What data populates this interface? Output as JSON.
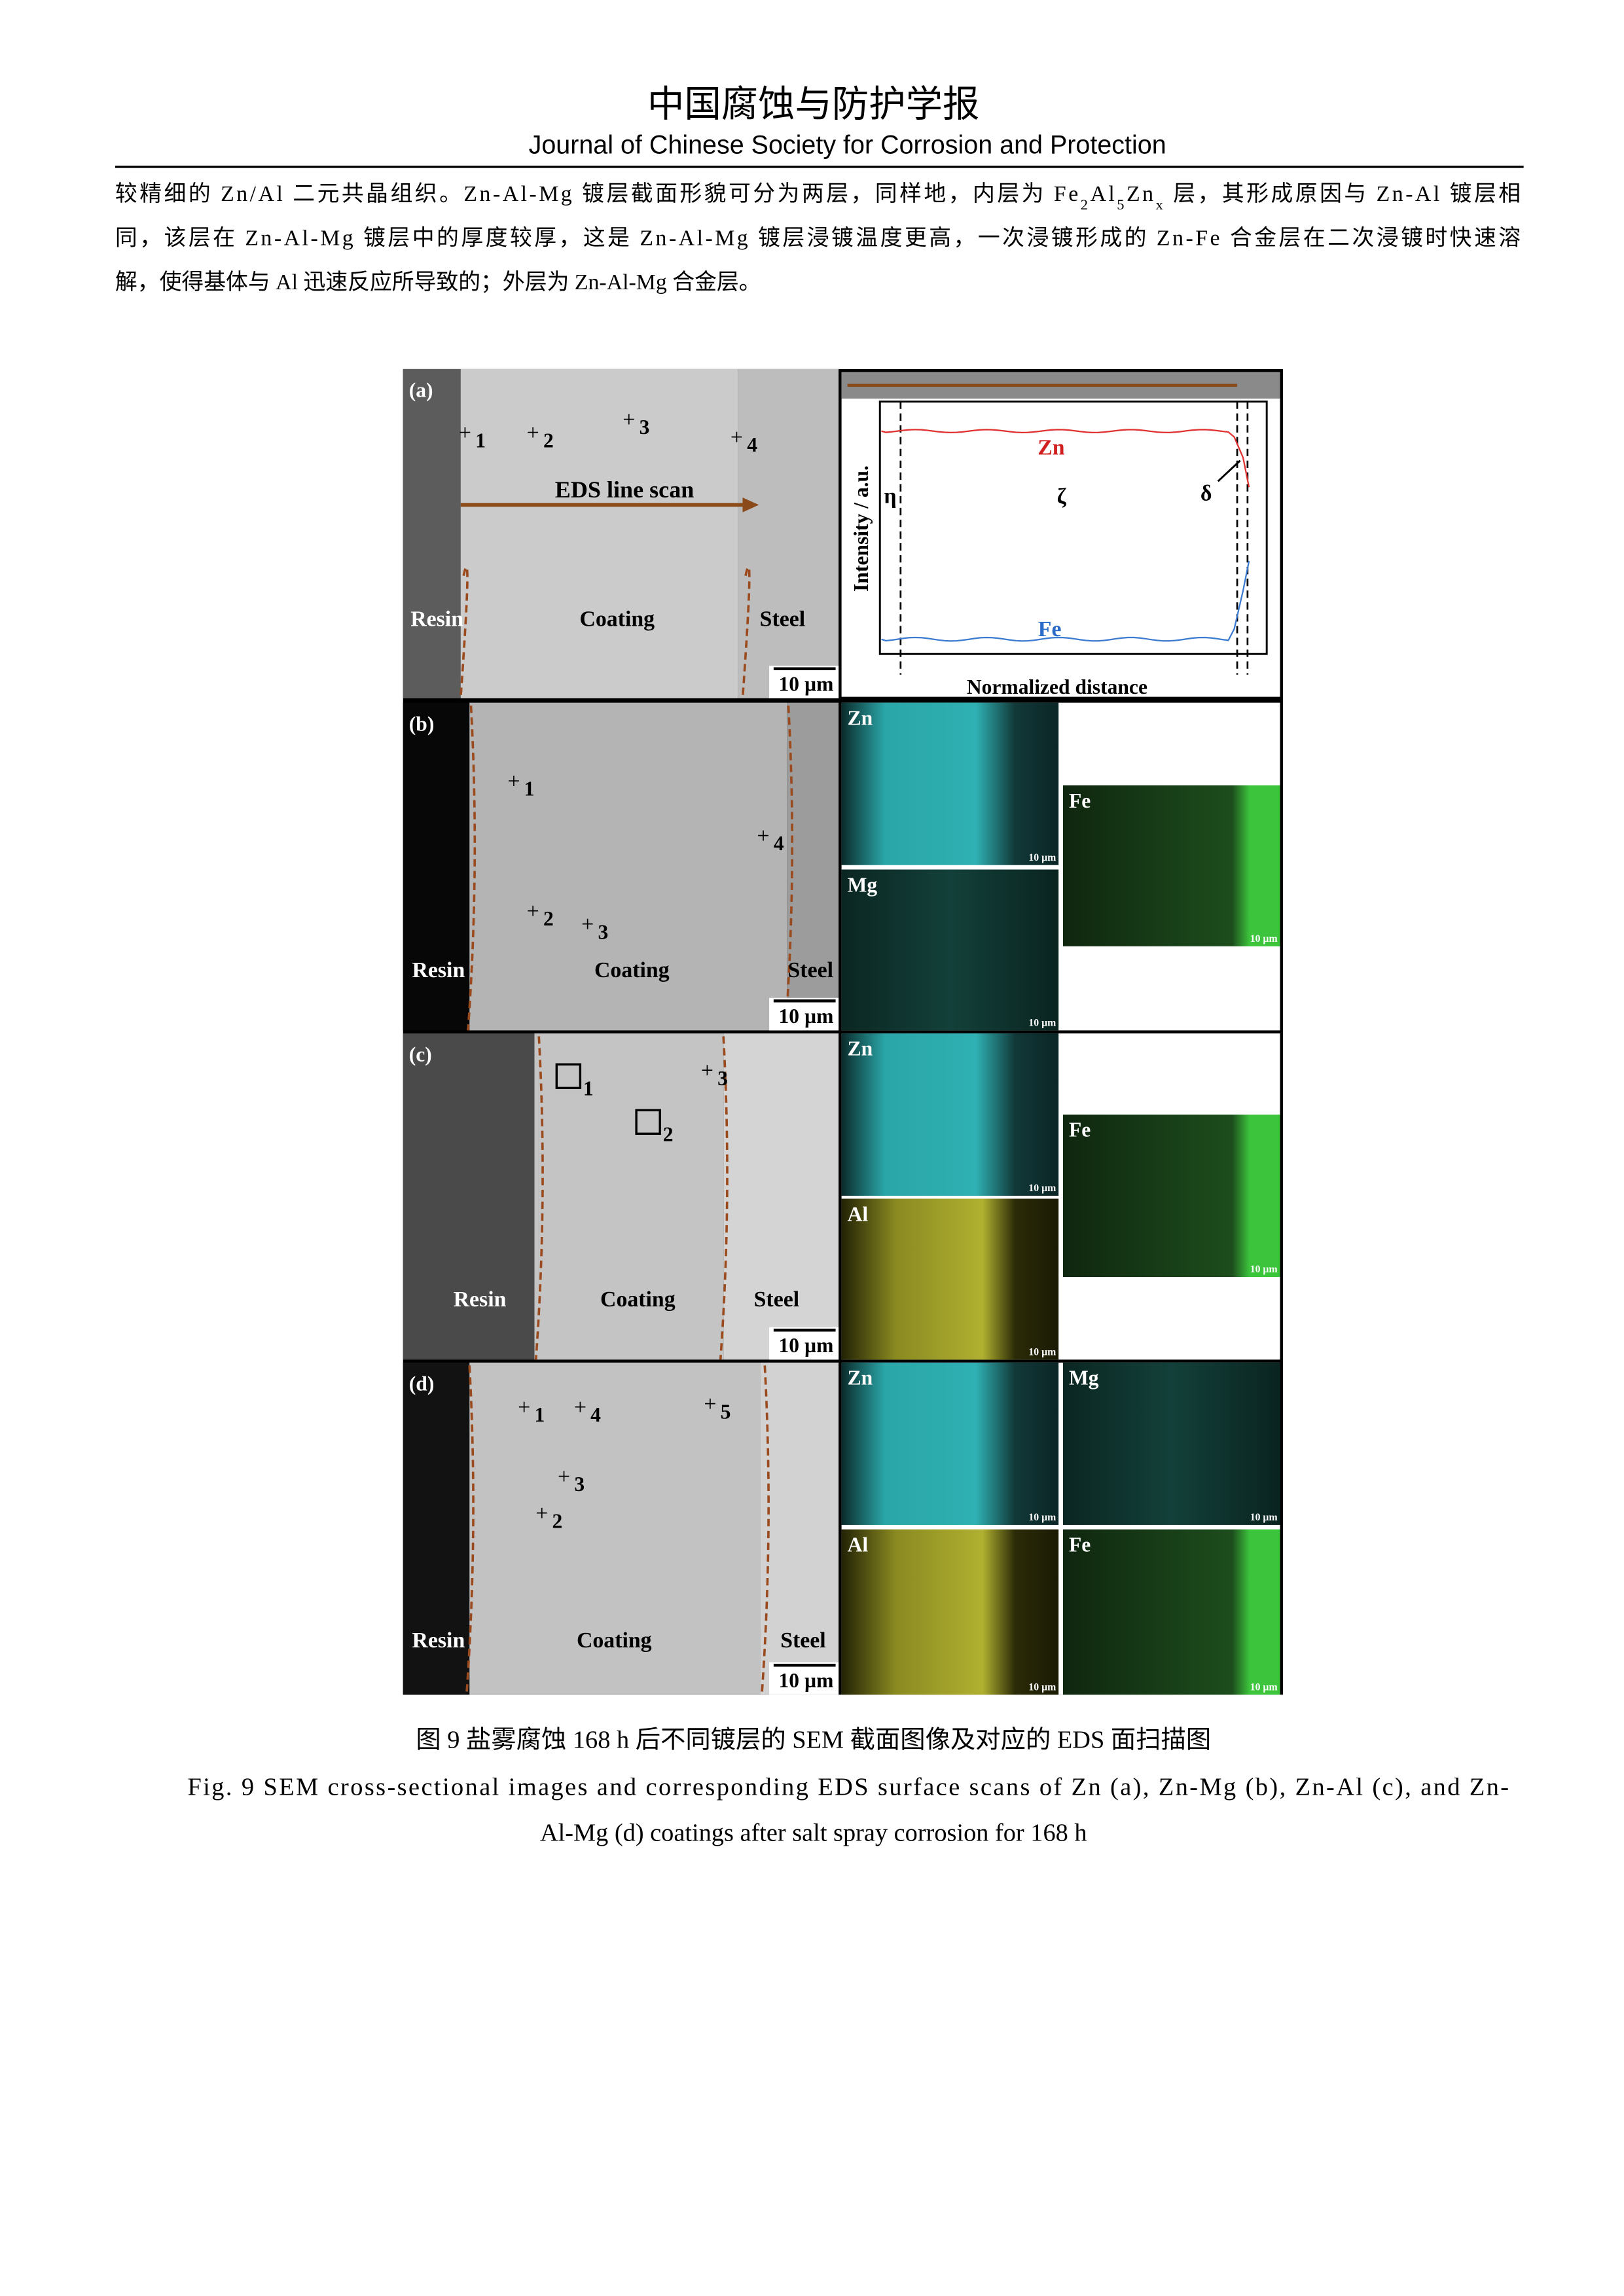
{
  "header": {
    "title": "中国腐蚀与防护学报",
    "subtitle": "Journal of Chinese Society for Corrosion and Protection"
  },
  "body": {
    "lines": [
      {
        "parts": [
          "较精细的 Zn/Al 二元共晶组织。Zn-Al-Mg 镀层截面形貌可分为两层，同样地，内层为 Fe",
          "2",
          "Al",
          "5",
          "Zn",
          "x",
          " 层，其形成原因与 Zn-Al 镀层相"
        ]
      },
      {
        "parts": [
          "同，该层在 Zn-Al-Mg 镀层中的厚度较厚，这是 Zn-Al-Mg 镀层浸镀温度更高，一次浸镀形成的 Zn-Fe 合金层在二次浸镀时快速溶"
        ]
      },
      {
        "parts": [
          "解，使得基体与 Al 迅速反应所导致的；外层为 Zn-Al-Mg 合金层。"
        ]
      }
    ]
  },
  "figure": {
    "panels": [
      {
        "label": "(a)",
        "points": [
          "1",
          "2",
          "3",
          "4"
        ],
        "regions": [
          "Resin",
          "Coating",
          "Steel"
        ],
        "scale_bar": "10 µm",
        "line_scan": "EDS line scan",
        "profile": {
          "y_label": "Intensity / a.u.",
          "x_label": "Normalized distance",
          "curves": [
            "Zn",
            "Fe"
          ],
          "zones": [
            "η",
            "ζ",
            "δ"
          ]
        }
      },
      {
        "label": "(b)",
        "points": [
          "1",
          "4",
          "2",
          "3"
        ],
        "regions": [
          "Resin",
          "Coating",
          "Steel"
        ],
        "scale_bar": "10 µm",
        "maps": [
          {
            "element": "Zn",
            "scale_bar": "10 µm"
          },
          {
            "element": "Mg",
            "scale_bar": "10 µm"
          },
          {
            "element": "Fe",
            "scale_bar": "10 µm"
          }
        ]
      },
      {
        "label": "(c)",
        "points": [
          "1",
          "2",
          "3"
        ],
        "regions": [
          "Resin",
          "Coating",
          "Steel"
        ],
        "scale_bar": "10 µm",
        "maps": [
          {
            "element": "Zn",
            "scale_bar": "10 µm"
          },
          {
            "element": "Al",
            "scale_bar": "10 µm"
          },
          {
            "element": "Fe",
            "scale_bar": "10 µm"
          }
        ]
      },
      {
        "label": "(d)",
        "points": [
          "1",
          "4",
          "5",
          "3",
          "2"
        ],
        "regions": [
          "Resin",
          "Coating",
          "Steel"
        ],
        "scale_bar": "10 µm",
        "maps": [
          {
            "element": "Zn",
            "scale_bar": "10 µm"
          },
          {
            "element": "Mg",
            "scale_bar": "10 µm"
          },
          {
            "element": "Al",
            "scale_bar": "10 µm"
          },
          {
            "element": "Fe",
            "scale_bar": "10 µm"
          }
        ]
      }
    ]
  },
  "caption": {
    "cn": "图 9  盐雾腐蚀 168 h 后不同镀层的 SEM 截面图像及对应的 EDS 面扫描图",
    "en_lines": [
      "Fig. 9 SEM cross-sectional images and corresponding EDS surface scans of Zn (a), Zn-Mg (b), Zn-Al (c), and Zn-",
      "Al-Mg (d) coatings after salt spray corrosion for 168 h"
    ]
  }
}
